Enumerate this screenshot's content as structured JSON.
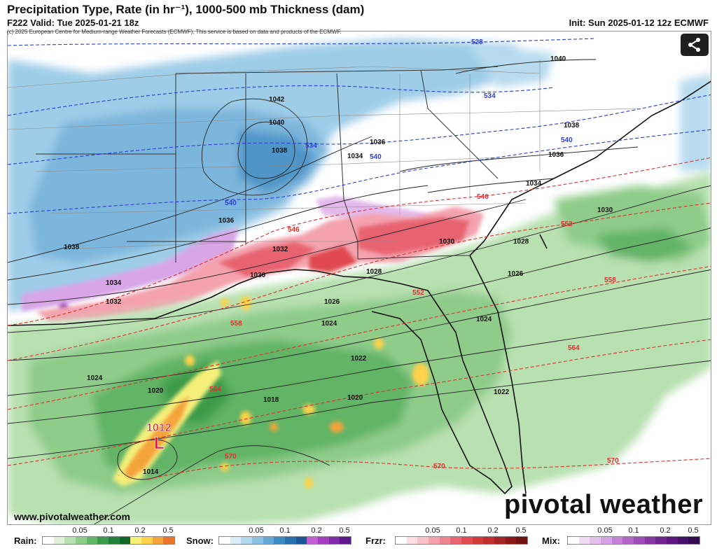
{
  "header": {
    "title": "Precipitation Type, Rate (in hr⁻¹), 1000-500 mb Thickness (dam)",
    "valid": "F222 Valid: Tue 2025-01-21 18z",
    "init": "Init: Sun 2025-01-12 12z ECMWF",
    "credit": "(c) 2025 European Centre for Medium-range Weather Forecasts (ECMWF). This service is based on data and products of the ECMWF."
  },
  "footer": {
    "website": "www.pivotalweather.com",
    "brand": "pivotal weather"
  },
  "share_button": {
    "icon": "share-icon"
  },
  "colors": {
    "thickness_cold": "#2b3fd6",
    "thickness_warm": "#e03030",
    "isobar": "#222222",
    "low_marker": "#d81b3a"
  },
  "map": {
    "low_center": {
      "pressure": "1012",
      "symbol": "L"
    },
    "isobar_labels": [
      "1042",
      "1040",
      "1038",
      "1038",
      "1036",
      "1036",
      "1034",
      "1034",
      "1032",
      "1032",
      "1030",
      "1030",
      "1030",
      "1028",
      "1028",
      "1026",
      "1026",
      "1024",
      "1024",
      "1024",
      "1022",
      "1022",
      "1020",
      "1020",
      "1018",
      "1014",
      "1040",
      "1038",
      "1036",
      "1034"
    ],
    "thickness_labels": [
      "528",
      "534",
      "534",
      "540",
      "540",
      "540",
      "546",
      "546",
      "552",
      "552",
      "558",
      "558",
      "564",
      "564",
      "570",
      "570",
      "570"
    ]
  },
  "legend": [
    {
      "label": "Rain:",
      "ticks": [
        "0.05",
        "0.1",
        "0.2",
        "0.5"
      ],
      "colors": [
        "#ffffff",
        "#dff0d8",
        "#b8e0b0",
        "#8fcc8a",
        "#62b466",
        "#3c9b4a",
        "#22803a",
        "#0f6628",
        "#f4f07a",
        "#fcd34a",
        "#f5a33a",
        "#e8742e"
      ]
    },
    {
      "label": "Snow:",
      "ticks": [
        "0.05",
        "0.1",
        "0.2",
        "0.5"
      ],
      "colors": [
        "#ffffff",
        "#d6ecf7",
        "#b4d8ef",
        "#8cc1e4",
        "#65a8d6",
        "#3f8cc4",
        "#2a6fb0",
        "#1c5596",
        "#c25fd0",
        "#a33fbf",
        "#7d2aa8",
        "#5a1a88"
      ]
    },
    {
      "label": "Frzr:",
      "ticks": [
        "0.05",
        "0.1",
        "0.2",
        "0.5"
      ],
      "colors": [
        "#ffffff",
        "#fbdde2",
        "#f8c2cb",
        "#f4a3ae",
        "#ef8490",
        "#e86472",
        "#e04a50",
        "#d33a3a",
        "#c12e2e",
        "#a52424",
        "#8a1a1a",
        "#6f1212"
      ]
    },
    {
      "label": "Mix:",
      "ticks": [
        "0.05",
        "0.1",
        "0.2",
        "0.5"
      ],
      "colors": [
        "#ffffff",
        "#f1dcf4",
        "#e5c0ec",
        "#d6a2e2",
        "#c583d6",
        "#b266c8",
        "#9d4cb8",
        "#8736a6",
        "#702492",
        "#5a167c",
        "#451066",
        "#330a50"
      ]
    }
  ]
}
